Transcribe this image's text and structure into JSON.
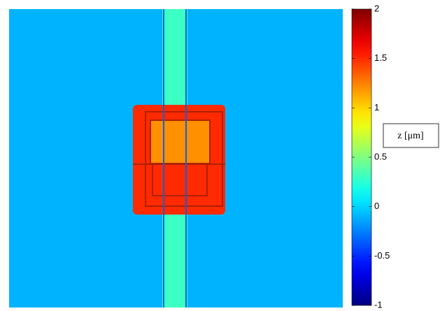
{
  "chart_data": {
    "type": "heatmap",
    "z_values": [
      -0.1,
      0.3,
      1.5,
      1.2
    ],
    "clim": [
      -1,
      2
    ],
    "colorbar_ticks": [
      -1,
      -0.5,
      0,
      0.5,
      1,
      1.5,
      2
    ],
    "colorbar_label": "z [μm]",
    "colormap": "jet"
  }
}
